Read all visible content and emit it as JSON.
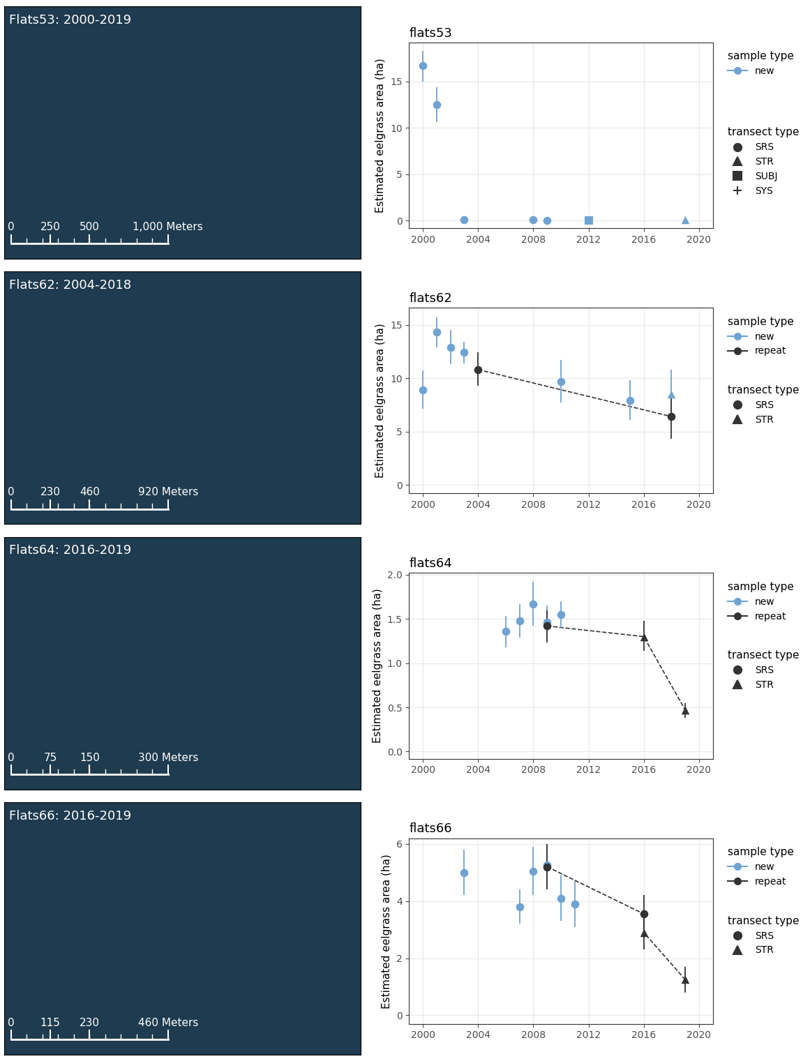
{
  "chart_data": [
    {
      "type": "scatter",
      "title": "flats53",
      "y_label": "Estimated eelgrass area (ha)",
      "xlim": [
        1999,
        2021
      ],
      "xticks": [
        2000,
        2004,
        2008,
        2012,
        2016,
        2020
      ],
      "ylim": [
        -0.8,
        19.2
      ],
      "yticks": [
        0,
        5,
        10,
        15
      ],
      "grid": true,
      "legend": "right",
      "legend_titles": {
        "sample": "sample type",
        "transect": "transect type"
      },
      "transect_types": [
        "SRS",
        "STR",
        "SUBJ",
        "SYS"
      ],
      "series": [
        {
          "name": "new",
          "color": "#6fa3d2",
          "marker": "o",
          "x": [
            2000,
            2001,
            2003,
            2008,
            2009,
            2012,
            2019
          ],
          "values": [
            16.7,
            12.5,
            0.1,
            0.1,
            0.0,
            0.0,
            0.1
          ],
          "lower": [
            15.0,
            10.6,
            0.0,
            0.0,
            0.0,
            0.0,
            0.0
          ],
          "upper": [
            18.3,
            14.4,
            0.2,
            0.2,
            0.1,
            0.1,
            0.3
          ],
          "transect": [
            "SRS",
            "SRS",
            "SRS",
            "SRS",
            "SRS",
            "SUBJ",
            "STR"
          ]
        }
      ]
    },
    {
      "type": "scatter",
      "title": "flats62",
      "y_label": "Estimated eelgrass area (ha)",
      "xlim": [
        1999,
        2021
      ],
      "xticks": [
        2000,
        2004,
        2008,
        2012,
        2016,
        2020
      ],
      "ylim": [
        -0.8,
        16.6
      ],
      "yticks": [
        0,
        5,
        10,
        15
      ],
      "grid": true,
      "legend": "right",
      "legend_titles": {
        "sample": "sample type",
        "transect": "transect type"
      },
      "transect_types": [
        "SRS",
        "STR"
      ],
      "series": [
        {
          "name": "new",
          "color": "#6fa3d2",
          "marker": "o",
          "x": [
            2000,
            2001,
            2002,
            2003,
            2010,
            2015,
            2018
          ],
          "values": [
            8.9,
            14.3,
            12.9,
            12.4,
            9.7,
            7.9,
            8.5
          ],
          "lower": [
            7.1,
            12.9,
            11.3,
            11.4,
            7.7,
            6.1,
            6.3
          ],
          "upper": [
            10.7,
            15.7,
            14.5,
            13.4,
            11.7,
            9.8,
            10.8
          ],
          "transect": [
            "SRS",
            "SRS",
            "SRS",
            "SRS",
            "SRS",
            "SRS",
            "STR"
          ]
        },
        {
          "name": "repeat",
          "color": "#333333",
          "marker": "o",
          "line_style": "dashed",
          "x": [
            2004,
            2018
          ],
          "values": [
            10.8,
            6.4
          ],
          "lower": [
            9.3,
            4.3
          ],
          "upper": [
            12.4,
            8.6
          ],
          "transect": [
            "SRS",
            "SRS"
          ]
        }
      ]
    },
    {
      "type": "scatter",
      "title": "flats64",
      "y_label": "Estimated eelgrass area (ha)",
      "xlim": [
        1999,
        2021
      ],
      "xticks": [
        2000,
        2004,
        2008,
        2012,
        2016,
        2020
      ],
      "ylim": [
        -0.08,
        2.02
      ],
      "yticks": [
        {
          "value": 0,
          "label": "0.0"
        },
        {
          "value": 0.5,
          "label": "0.5"
        },
        {
          "value": 1,
          "label": "1.0"
        },
        {
          "value": 1.5,
          "label": "1.5"
        },
        {
          "value": 2,
          "label": "2.0"
        }
      ],
      "grid": true,
      "legend": "right",
      "legend_titles": {
        "sample": "sample type",
        "transect": "transect type"
      },
      "transect_types": [
        "SRS",
        "STR"
      ],
      "series": [
        {
          "name": "new",
          "color": "#6fa3d2",
          "marker": "o",
          "x": [
            2006,
            2007,
            2008,
            2009,
            2010
          ],
          "values": [
            1.36,
            1.48,
            1.67,
            1.46,
            1.55
          ],
          "lower": [
            1.18,
            1.29,
            1.42,
            1.28,
            1.4
          ],
          "upper": [
            1.53,
            1.67,
            1.92,
            1.65,
            1.7
          ],
          "transect": [
            "SRS",
            "SRS",
            "SRS",
            "SRS",
            "SRS"
          ]
        },
        {
          "name": "repeat",
          "color": "#333333",
          "marker": "o",
          "line_style": "dashed",
          "x": [
            2009,
            2016,
            2019
          ],
          "values": [
            1.42,
            1.3,
            0.47
          ],
          "lower": [
            1.23,
            1.14,
            0.38
          ],
          "upper": [
            1.6,
            1.48,
            0.55
          ],
          "transect": [
            "SRS",
            "STR",
            "STR"
          ]
        }
      ]
    },
    {
      "type": "scatter",
      "title": "flats66",
      "y_label": "Estimated eelgrass area (ha)",
      "xlim": [
        1999,
        2021
      ],
      "xticks": [
        2000,
        2004,
        2008,
        2012,
        2016,
        2020
      ],
      "ylim": [
        -0.3,
        6.2
      ],
      "yticks": [
        0,
        2,
        4,
        6
      ],
      "grid": true,
      "legend": "right",
      "legend_titles": {
        "sample": "sample type",
        "transect": "transect type"
      },
      "transect_types": [
        "SRS",
        "STR"
      ],
      "series": [
        {
          "name": "new",
          "color": "#6fa3d2",
          "marker": "o",
          "x": [
            2003,
            2007,
            2008,
            2009,
            2010,
            2011
          ],
          "values": [
            5.0,
            3.8,
            5.05,
            5.25,
            4.1,
            3.9
          ],
          "lower": [
            4.2,
            3.2,
            4.2,
            4.5,
            3.3,
            3.1
          ],
          "upper": [
            5.8,
            4.4,
            5.9,
            6.0,
            4.9,
            4.7
          ],
          "transect": [
            "SRS",
            "SRS",
            "SRS",
            "SRS",
            "SRS",
            "SRS"
          ]
        },
        {
          "name": "repeat",
          "color": "#333333",
          "marker": "o",
          "line_style": "dashed",
          "x": [
            2009,
            2016,
            2016,
            2019
          ],
          "values": [
            5.2,
            3.55,
            2.9,
            1.25
          ],
          "lower": [
            4.4,
            2.9,
            2.3,
            0.8
          ],
          "upper": [
            6.0,
            4.2,
            3.6,
            1.7
          ],
          "transect": [
            "SRS",
            "SRS",
            "STR",
            "STR"
          ]
        }
      ]
    }
  ],
  "maps": [
    {
      "title": "Flats53: 2000-2019",
      "scale": [
        {
          "value": 0,
          "label": "0"
        },
        {
          "value": 250,
          "label": "250"
        },
        {
          "value": 500,
          "label": "500"
        },
        {
          "value": 1000,
          "label": "1,000 Meters"
        }
      ]
    },
    {
      "title": "Flats62: 2004-2018",
      "scale": [
        {
          "value": 0,
          "label": "0"
        },
        {
          "value": 230,
          "label": "230"
        },
        {
          "value": 460,
          "label": "460"
        },
        {
          "value": 920,
          "label": "920 Meters"
        }
      ]
    },
    {
      "title": "Flats64: 2016-2019",
      "scale": [
        {
          "value": 0,
          "label": "0"
        },
        {
          "value": 75,
          "label": "75"
        },
        {
          "value": 150,
          "label": "150"
        },
        {
          "value": 300,
          "label": "300 Meters"
        }
      ]
    },
    {
      "title": "Flats66: 2016-2019",
      "scale": [
        {
          "value": 0,
          "label": "0"
        },
        {
          "value": 115,
          "label": "115"
        },
        {
          "value": 230,
          "label": "230"
        },
        {
          "value": 460,
          "label": "460 Meters"
        }
      ]
    }
  ]
}
